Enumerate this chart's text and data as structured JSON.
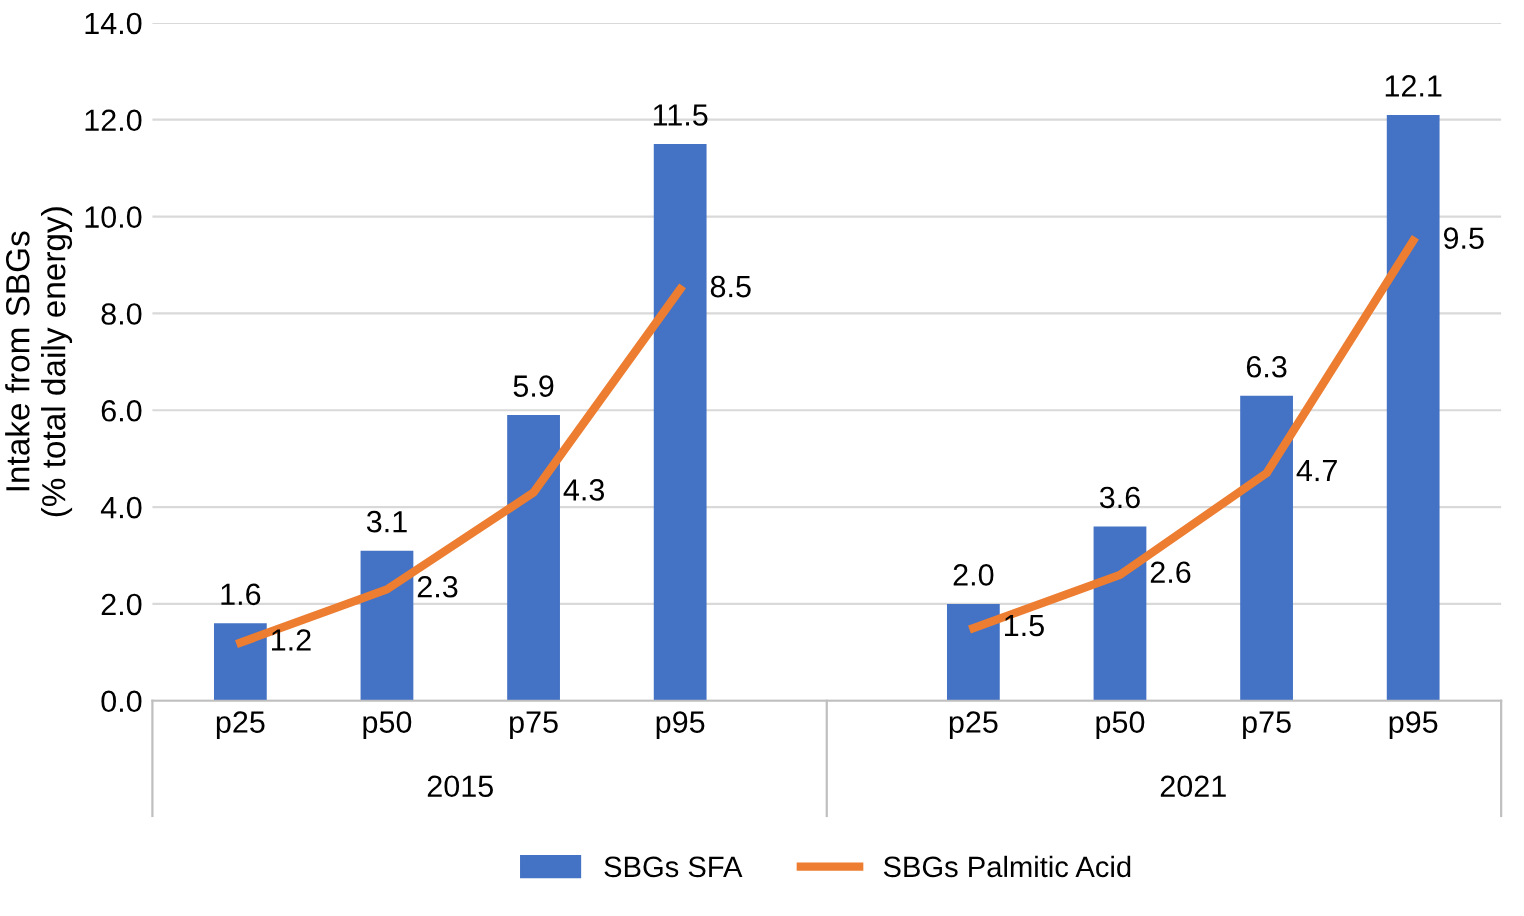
{
  "chart_data": {
    "type": "bar",
    "ylabel": "Intake from SBGs\n(% total daily energy)",
    "categories": [
      "p25",
      "p50",
      "p75",
      "p95",
      null,
      "p25",
      "p50",
      "p75",
      "p95"
    ],
    "series": [
      {
        "name": "SBGs SFA",
        "color": "#4472c4",
        "values": [
          1.6,
          3.1,
          5.9,
          11.5,
          null,
          2.0,
          3.6,
          6.3,
          12.1
        ],
        "value_labels": [
          "1.6",
          "3.1",
          "5.9",
          "11.5",
          null,
          "2.0",
          "3.6",
          "6.3",
          "12.1"
        ]
      },
      {
        "name": "SBGs Palmitic Acid",
        "type": "line",
        "color": "#ed7d31",
        "values": [
          1.2,
          2.3,
          4.3,
          8.5,
          null,
          1.5,
          2.6,
          4.7,
          9.5
        ],
        "value_labels": [
          "1.2",
          "2.3",
          "4.3",
          "8.5",
          null,
          "1.5",
          "2.6",
          "4.7",
          "9.5"
        ]
      }
    ],
    "annotations": [
      "2015",
      "2021"
    ],
    "ylim": [
      0,
      14
    ],
    "yticks": [
      {
        "value": 0,
        "label": "0.0"
      },
      {
        "value": 2,
        "label": "2.0"
      },
      {
        "value": 4,
        "label": "4.0"
      },
      {
        "value": 6,
        "label": "6.0"
      },
      {
        "value": 8,
        "label": "8.0"
      },
      {
        "value": 10,
        "label": "10.0"
      },
      {
        "value": 12,
        "label": "12.0"
      },
      {
        "value": 14,
        "label": "14.0"
      }
    ],
    "grid": "y",
    "legend": "bottom",
    "line_style": "solid",
    "marker": "none"
  }
}
